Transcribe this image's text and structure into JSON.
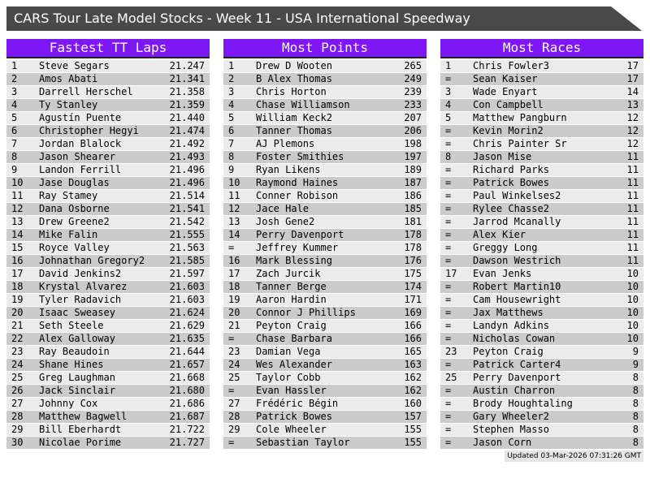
{
  "title": "CARS Tour Late Model Stocks - Week 11 - USA International Speedway",
  "colors": {
    "accent": "#7d18f5",
    "titlebar": "#494949",
    "row_light": "#ebebeb",
    "row_dark": "#cbcbcb",
    "footer_bg": "#e6e6e6"
  },
  "panels": [
    {
      "header": "Fastest TT Laps",
      "rows": [
        [
          "1",
          "Steve Segars",
          "21.247"
        ],
        [
          "2",
          "Amos Abati",
          "21.341"
        ],
        [
          "3",
          "Darrell Herschel",
          "21.358"
        ],
        [
          "4",
          "Ty Stanley",
          "21.359"
        ],
        [
          "5",
          "Agustín Puente",
          "21.440"
        ],
        [
          "6",
          "Christopher Hegyi",
          "21.474"
        ],
        [
          "7",
          "Jordan Blalock",
          "21.492"
        ],
        [
          "8",
          "Jason Shearer",
          "21.493"
        ],
        [
          "9",
          "Landon Ferrill",
          "21.496"
        ],
        [
          "10",
          "Jase Douglas",
          "21.496"
        ],
        [
          "11",
          "Ray Stamey",
          "21.514"
        ],
        [
          "12",
          "Dana Osborne",
          "21.541"
        ],
        [
          "13",
          "Drew Greene2",
          "21.542"
        ],
        [
          "14",
          "Mike Falin",
          "21.555"
        ],
        [
          "15",
          "Royce Valley",
          "21.563"
        ],
        [
          "16",
          "Johnathan Gregory2",
          "21.585"
        ],
        [
          "17",
          "David Jenkins2",
          "21.597"
        ],
        [
          "18",
          "Krystal Alvarez",
          "21.603"
        ],
        [
          "19",
          "Tyler Radavich",
          "21.603"
        ],
        [
          "20",
          "Isaac Sweasey",
          "21.624"
        ],
        [
          "21",
          "Seth Steele",
          "21.629"
        ],
        [
          "22",
          "Alex Galloway",
          "21.635"
        ],
        [
          "23",
          "Ray Beaudoin",
          "21.644"
        ],
        [
          "24",
          "Shane Hines",
          "21.657"
        ],
        [
          "25",
          "Greg Laughman",
          "21.668"
        ],
        [
          "26",
          "Jack Sinclair",
          "21.680"
        ],
        [
          "27",
          "Johnny Cox",
          "21.686"
        ],
        [
          "28",
          "Matthew Bagwell",
          "21.687"
        ],
        [
          "29",
          "Bill Eberhardt",
          "21.722"
        ],
        [
          "30",
          "Nicolae Porime",
          "21.727"
        ]
      ]
    },
    {
      "header": "Most Points",
      "rows": [
        [
          "1",
          "Drew D Wooten",
          "265"
        ],
        [
          "2",
          "B Alex Thomas",
          "249"
        ],
        [
          "3",
          "Chris Horton",
          "239"
        ],
        [
          "4",
          "Chase Williamson",
          "233"
        ],
        [
          "5",
          "William Keck2",
          "207"
        ],
        [
          "6",
          "Tanner Thomas",
          "206"
        ],
        [
          "7",
          "AJ Plemons",
          "198"
        ],
        [
          "8",
          "Foster Smithies",
          "197"
        ],
        [
          "9",
          "Ryan Likens",
          "189"
        ],
        [
          "10",
          "Raymond Haines",
          "187"
        ],
        [
          "11",
          "Conner Robison",
          "186"
        ],
        [
          "12",
          "Jace Hale",
          "185"
        ],
        [
          "13",
          "Josh Gene2",
          "181"
        ],
        [
          "14",
          "Perry Davenport",
          "178"
        ],
        [
          "=",
          "Jeffrey Kummer",
          "178"
        ],
        [
          "16",
          "Mark Blessing",
          "176"
        ],
        [
          "17",
          "Zach Jurcik",
          "175"
        ],
        [
          "18",
          "Tanner Berge",
          "174"
        ],
        [
          "19",
          "Aaron Hardin",
          "171"
        ],
        [
          "20",
          "Connor J Phillips",
          "169"
        ],
        [
          "21",
          "Peyton Craig",
          "166"
        ],
        [
          "=",
          "Chase Barbara",
          "166"
        ],
        [
          "23",
          "Damian Vega",
          "165"
        ],
        [
          "24",
          "Wes Alexander",
          "163"
        ],
        [
          "25",
          "Taylor Cobb",
          "162"
        ],
        [
          "=",
          "Evan Hassler",
          "162"
        ],
        [
          "27",
          "Frédéric Bégin",
          "160"
        ],
        [
          "28",
          "Patrick Bowes",
          "157"
        ],
        [
          "29",
          "Cole Wheeler",
          "155"
        ],
        [
          "=",
          "Sebastian Taylor",
          "155"
        ]
      ]
    },
    {
      "header": "Most Races",
      "rows": [
        [
          "1",
          "Chris Fowler3",
          "17"
        ],
        [
          "=",
          "Sean Kaiser",
          "17"
        ],
        [
          "3",
          "Wade Enyart",
          "14"
        ],
        [
          "4",
          "Con Campbell",
          "13"
        ],
        [
          "5",
          "Matthew Pangburn",
          "12"
        ],
        [
          "=",
          "Kevin Morin2",
          "12"
        ],
        [
          "=",
          "Chris Painter Sr",
          "12"
        ],
        [
          "8",
          "Jason Mise",
          "11"
        ],
        [
          "=",
          "Richard Parks",
          "11"
        ],
        [
          "=",
          "Patrick Bowes",
          "11"
        ],
        [
          "=",
          "Paul Winkelses2",
          "11"
        ],
        [
          "=",
          "Rylee Chasse2",
          "11"
        ],
        [
          "=",
          "Jarrod Mcanally",
          "11"
        ],
        [
          "=",
          "Alex Kier",
          "11"
        ],
        [
          "=",
          "Greggy Long",
          "11"
        ],
        [
          "=",
          "Dawson Westrich",
          "11"
        ],
        [
          "17",
          "Evan Jenks",
          "10"
        ],
        [
          "=",
          "Robert Martin10",
          "10"
        ],
        [
          "=",
          "Cam Housewright",
          "10"
        ],
        [
          "=",
          "Jax Matthews",
          "10"
        ],
        [
          "=",
          "Landyn Adkins",
          "10"
        ],
        [
          "=",
          "Nicholas Cowan",
          "10"
        ],
        [
          "23",
          "Peyton Craig",
          "9"
        ],
        [
          "=",
          "Patrick Carter4",
          "9"
        ],
        [
          "25",
          "Perry Davenport",
          "8"
        ],
        [
          "=",
          "Austin Charron",
          "8"
        ],
        [
          "=",
          "Brody Houghtaling",
          "8"
        ],
        [
          "=",
          "Gary Wheeler2",
          "8"
        ],
        [
          "=",
          "Stephen Masso",
          "8"
        ],
        [
          "=",
          "Jason Corn",
          "8"
        ]
      ]
    }
  ],
  "footer": {
    "updated": "Updated 03-Mar-2026 07:31:26 GMT"
  }
}
